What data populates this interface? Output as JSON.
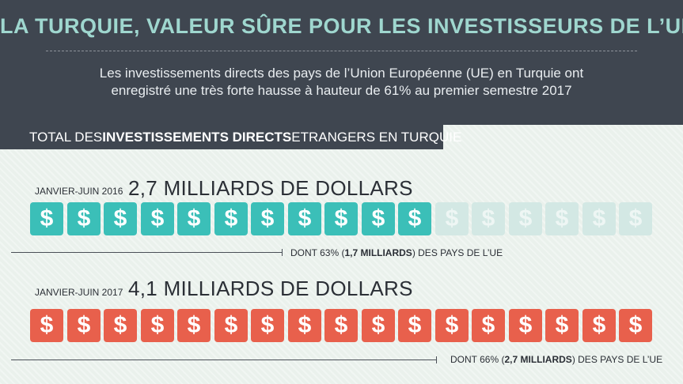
{
  "header": {
    "title": "LA TURQUIE, VALEUR SÛRE POUR LES INVESTISSEURS DE L’UE",
    "subtitle_line1": "Les investissements directs des pays de l’Union Européenne (UE) en Turquie ont",
    "subtitle_line2": "enregistré une très forte hausse à hauteur de 61% au premier semestre 2017"
  },
  "banner": {
    "part1": "TOTAL DES ",
    "part2": "INVESTISSEMENTS DIRECTS",
    "part3": " ETRANGERS EN TURQUIE"
  },
  "periods": [
    {
      "label": "JANVIER-JUIN 2016",
      "amount": "2,7 MILLIARDS DE DOLLARS",
      "note_pre": "DONT 63% (",
      "note_bold": "1,7 MILLIARDS",
      "note_post": ") DES PAYS DE L’UE",
      "filled_tiles": 11,
      "total_tiles": 17,
      "color": "#3bbfb8"
    },
    {
      "label": "JANVIER-JUIN 2017",
      "amount": "4,1 MILLIARDS DE DOLLARS",
      "note_pre": "DONT 66% (",
      "note_bold": "2,7 MILLIARDS",
      "note_post": ") DES PAYS DE L’UE",
      "filled_tiles": 17,
      "total_tiles": 17,
      "color": "#e8604c"
    }
  ],
  "icon": "dollar-sign-icon",
  "glyph": "$"
}
